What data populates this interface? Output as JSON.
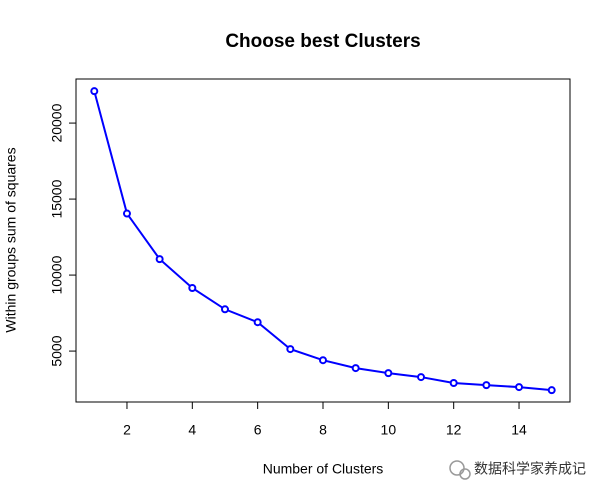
{
  "chart_data": {
    "type": "line",
    "title": "Choose best Clusters",
    "x_label": "Number of Clusters",
    "y_label": "Within groups sum of squares",
    "x": [
      1,
      2,
      3,
      4,
      5,
      6,
      7,
      8,
      9,
      10,
      11,
      12,
      13,
      14,
      15
    ],
    "series": [
      {
        "color": "#0000ff",
        "values": [
          22100,
          14050,
          11050,
          9150,
          7750,
          6900,
          5130,
          4400,
          3880,
          3550,
          3290,
          2900,
          2760,
          2630,
          2430
        ]
      }
    ],
    "xlim": [
      0.44,
      15.56
    ],
    "xticks": [
      2,
      4,
      6,
      8,
      10,
      12,
      14
    ],
    "ylim": [
      1650,
      22900
    ],
    "yticks": [
      5000,
      10000,
      15000,
      20000
    ]
  },
  "watermark": "数据科学家养成记"
}
